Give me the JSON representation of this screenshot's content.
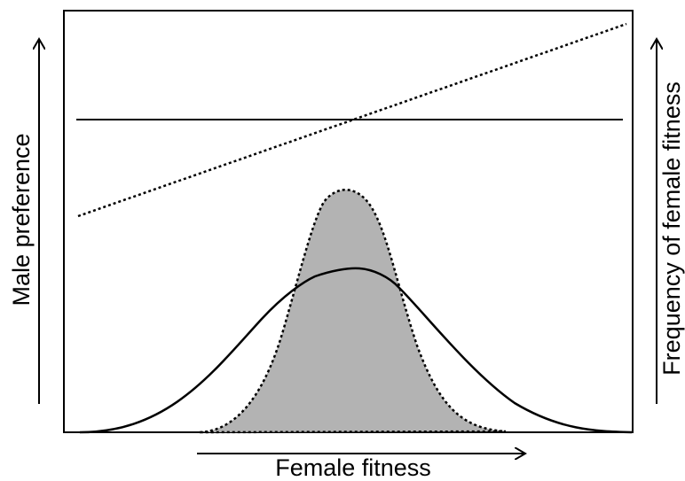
{
  "labels": {
    "x_axis": "Female fitness",
    "y_axis_left": "Male preference",
    "y_axis_right": "Frequency of female fitness"
  },
  "colors": {
    "line": "#000000",
    "shaded_distribution": "#b3b3b3",
    "background": "#ffffff"
  },
  "legend": [],
  "elements": {
    "preference_lines": [
      "solid horizontal",
      "dotted increasing"
    ],
    "distributions": [
      "wide solid bell curve",
      "narrow dotted shaded bell curve"
    ]
  }
}
